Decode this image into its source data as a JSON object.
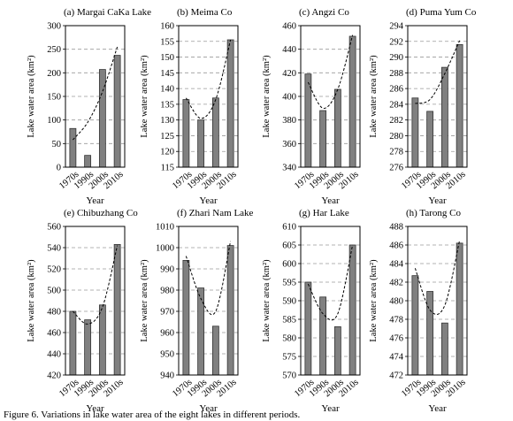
{
  "chart_data": [
    {
      "type": "bar",
      "title": "(a) Margai CaKa Lake",
      "categories": [
        "1970s",
        "1990s",
        "2000s",
        "2010s"
      ],
      "values": [
        82,
        25,
        207,
        237
      ],
      "trend": [
        58,
        95,
        160,
        255
      ],
      "ylim": [
        0,
        300
      ],
      "yticks": [
        "0",
        "50",
        "100",
        "150",
        "200",
        "250",
        "300"
      ],
      "xlabel": "Year",
      "ylabel": "Lake water area (km²)",
      "grid": "horizontal dashed"
    },
    {
      "type": "bar",
      "title": "(b) Meima Co",
      "categories": [
        "1970s",
        "1990s",
        "2000s",
        "2010s"
      ],
      "values": [
        136.5,
        130,
        137,
        155.5
      ],
      "trend": [
        137,
        130.5,
        136.5,
        155.5
      ],
      "ylim": [
        115,
        160
      ],
      "yticks": [
        "115",
        "120",
        "125",
        "130",
        "135",
        "140",
        "145",
        "150",
        "155",
        "160"
      ],
      "xlabel": "Year",
      "ylabel": "Lake water area (km²)",
      "grid": "horizontal dashed"
    },
    {
      "type": "bar",
      "title": "(c) Angzi Co",
      "categories": [
        "1970s",
        "1990s",
        "2000s",
        "2010s"
      ],
      "values": [
        419,
        388,
        406,
        451
      ],
      "trend": [
        412,
        390,
        406,
        452
      ],
      "ylim": [
        340,
        460
      ],
      "yticks": [
        "340",
        "360",
        "380",
        "400",
        "420",
        "440",
        "460"
      ],
      "xlabel": "Year",
      "ylabel": "Lake water area (km²)",
      "grid": "horizontal dashed"
    },
    {
      "type": "bar",
      "title": "(d) Puma Yum Co",
      "categories": [
        "1970s",
        "1990s",
        "2000s",
        "2010s"
      ],
      "values": [
        284.8,
        283.1,
        288.7,
        291.6
      ],
      "trend": [
        284.1,
        284.6,
        287.9,
        292.1
      ],
      "ylim": [
        276,
        294
      ],
      "yticks": [
        "276",
        "278",
        "280",
        "282",
        "284",
        "286",
        "288",
        "290",
        "292",
        "294"
      ],
      "xlabel": "Year",
      "ylabel": "Lake water area (km²)",
      "grid": "horizontal dashed"
    },
    {
      "type": "bar",
      "title": "(e) Chibuzhang Co",
      "categories": [
        "1970s",
        "1990s",
        "2000s",
        "2010s"
      ],
      "values": [
        480,
        472,
        486,
        543
      ],
      "trend": [
        480,
        468,
        484,
        542
      ],
      "ylim": [
        420,
        560
      ],
      "yticks": [
        "420",
        "440",
        "460",
        "480",
        "500",
        "520",
        "540",
        "560"
      ],
      "xlabel": "Year",
      "ylabel": "Lake water area (km²)",
      "grid": "horizontal dashed"
    },
    {
      "type": "bar",
      "title": "(f) Zhari Nam Lake",
      "categories": [
        "1970s",
        "1990s",
        "2000s",
        "2010s"
      ],
      "values": [
        994,
        981,
        963,
        1001
      ],
      "trend": [
        996,
        976,
        970,
        1003
      ],
      "ylim": [
        940,
        1010
      ],
      "yticks": [
        "940",
        "950",
        "960",
        "970",
        "980",
        "990",
        "1000",
        "1010"
      ],
      "xlabel": "Year",
      "ylabel": "Lake water area (km²)",
      "grid": "horizontal dashed"
    },
    {
      "type": "bar",
      "title": "(g) Har Lake",
      "categories": [
        "1970s",
        "1990s",
        "2000s",
        "2010s"
      ],
      "values": [
        595,
        591,
        583,
        605
      ],
      "trend": [
        594.5,
        586.5,
        586.5,
        605
      ],
      "ylim": [
        570,
        610
      ],
      "yticks": [
        "570",
        "575",
        "580",
        "585",
        "590",
        "595",
        "600",
        "605",
        "610"
      ],
      "xlabel": "Year",
      "ylabel": "Lake water area (km²)",
      "grid": "horizontal dashed"
    },
    {
      "type": "bar",
      "title": "(h) Tarong Co",
      "categories": [
        "1970s",
        "1990s",
        "2000s",
        "2010s"
      ],
      "values": [
        482.7,
        481,
        477.6,
        486.2
      ],
      "trend": [
        483.5,
        479,
        479.5,
        486.5
      ],
      "ylim": [
        472,
        488
      ],
      "yticks": [
        "472",
        "474",
        "476",
        "478",
        "480",
        "482",
        "484",
        "486",
        "488"
      ],
      "xlabel": "Year",
      "ylabel": "Lake water area (km²)",
      "grid": "horizontal dashed"
    }
  ],
  "caption": "Figure 6. Variations in lake water area of the eight lakes in different periods.",
  "colors": {
    "bar": "#808080",
    "bar_stroke": "#333333",
    "grid": "#9a9a9a",
    "axis": "#000000",
    "trend": "#000000"
  }
}
